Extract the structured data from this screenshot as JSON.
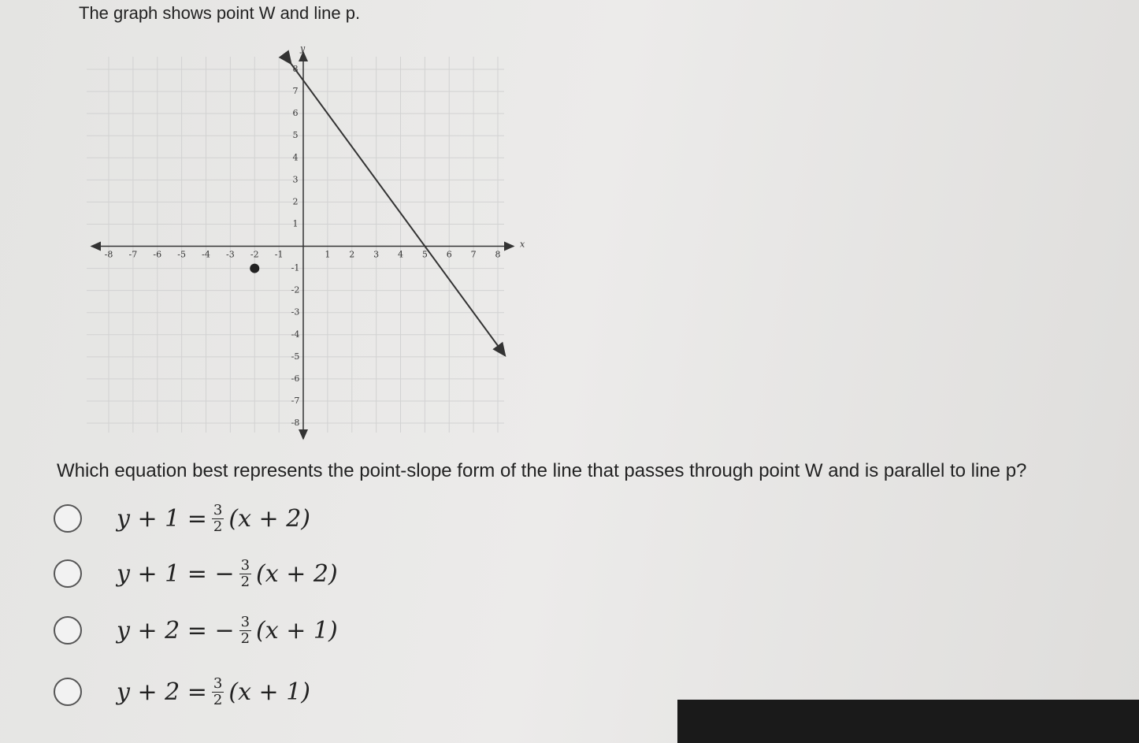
{
  "header": {
    "title": "The graph shows point W and line p."
  },
  "graph": {
    "x_label": "x",
    "y_label": "y",
    "xlim": [
      -8,
      8
    ],
    "ylim": [
      -8,
      8
    ],
    "xticks": [
      -8,
      -7,
      -6,
      -5,
      -4,
      -3,
      -2,
      -1,
      1,
      2,
      3,
      4,
      5,
      6,
      7,
      8
    ],
    "yticks": [
      -8,
      -7,
      -6,
      -5,
      -4,
      -3,
      -2,
      -1,
      1,
      2,
      3,
      4,
      5,
      6,
      7,
      8
    ],
    "point": {
      "x": -2,
      "y": -1
    },
    "line": {
      "x": [
        -0.5,
        8.3
      ],
      "y": [
        8.25,
        -4.95
      ]
    }
  },
  "question": "Which equation best represents the point-slope form of the line that passes through point W and is parallel to line p?",
  "options": [
    {
      "lhs": "y + 1 =",
      "num": "3",
      "den": "2",
      "rhs": "(x + 2)"
    },
    {
      "lhs": "y + 1 = −",
      "num": "3",
      "den": "2",
      "rhs": "(x + 2)"
    },
    {
      "lhs": "y + 2 = −",
      "num": "3",
      "den": "2",
      "rhs": "(x + 1)"
    },
    {
      "lhs": "y + 2 =",
      "num": "3",
      "den": "2",
      "rhs": "(x + 1)"
    }
  ]
}
